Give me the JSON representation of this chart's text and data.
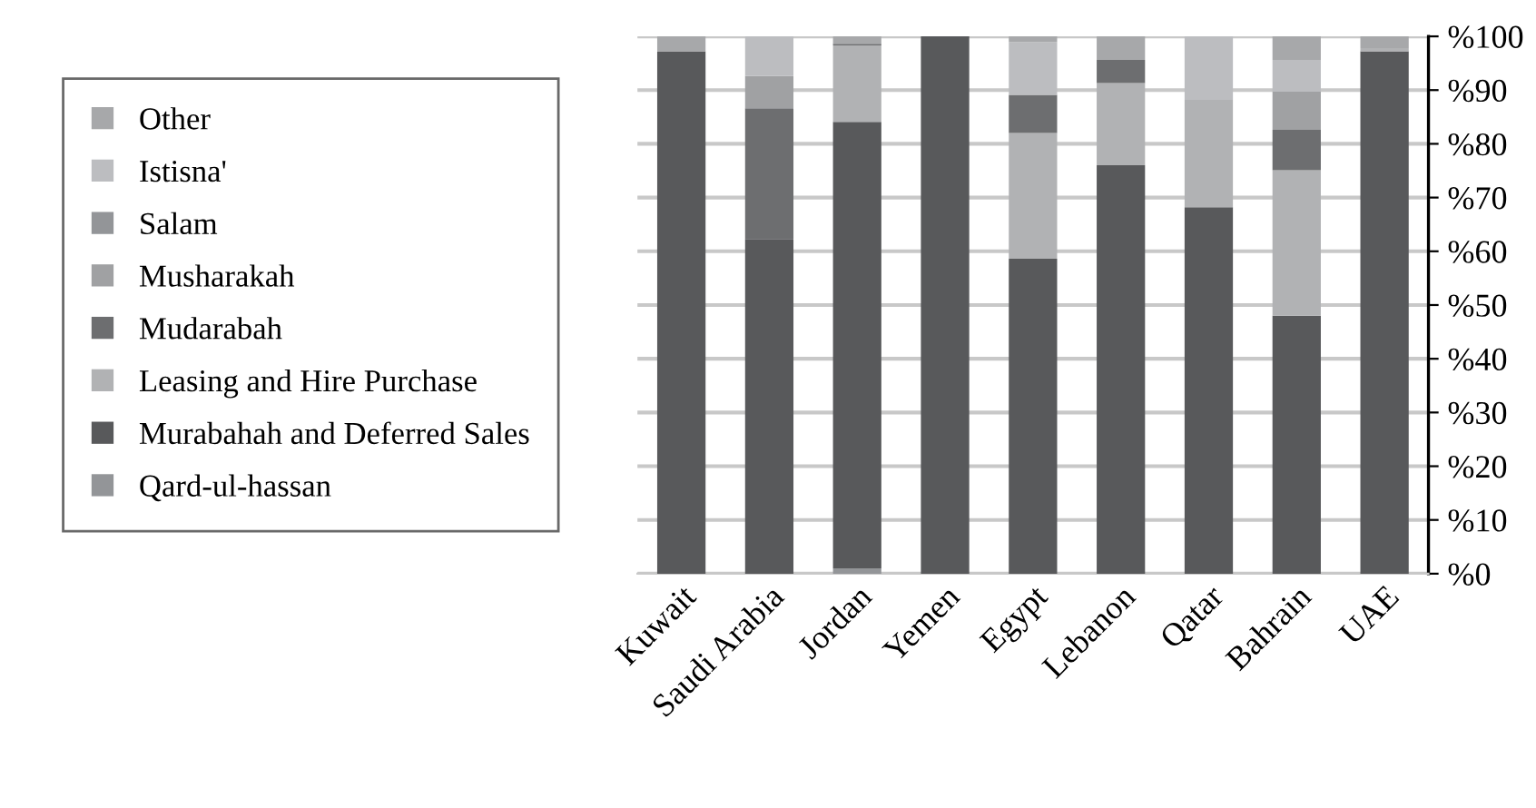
{
  "chart_data": {
    "type": "bar",
    "stacked": true,
    "categories": [
      "Kuwait",
      "Saudi Arabia",
      "Jordan",
      "Yemen",
      "Egypt",
      "Lebanon",
      "Qatar",
      "Bahrain",
      "UAE"
    ],
    "series": [
      {
        "name": "Qard-ul-hassan",
        "color": "#939598",
        "values": [
          0,
          0,
          1,
          0,
          0,
          0,
          0,
          0,
          0
        ]
      },
      {
        "name": "Murabahah and Deferred Sales",
        "color": "#58595b",
        "values": [
          97.2,
          62.3,
          83.1,
          100,
          58.6,
          76.0,
          68.2,
          48.0,
          97.2
        ]
      },
      {
        "name": "Leasing and Hire Purchase",
        "color": "#b1b2b4",
        "values": [
          0,
          0,
          14.2,
          0,
          23.4,
          15.3,
          20.0,
          27.1,
          0.6
        ]
      },
      {
        "name": "Mudarabah",
        "color": "#6d6e70",
        "values": [
          0,
          24.3,
          0.3,
          0,
          7.1,
          4.3,
          0,
          7.5,
          0
        ]
      },
      {
        "name": "Musharakah",
        "color": "#a0a1a3",
        "values": [
          0,
          6.0,
          0,
          0,
          0,
          0,
          0,
          7.1,
          0
        ]
      },
      {
        "name": "Salam",
        "color": "#939598",
        "values": [
          0,
          0,
          0,
          0,
          0,
          0,
          0,
          0,
          0
        ]
      },
      {
        "name": "Istisna'",
        "color": "#bcbdc0",
        "values": [
          0,
          7.4,
          0,
          0,
          9.8,
          0,
          11.8,
          5.9,
          0
        ]
      },
      {
        "name": "Other",
        "color": "#a7a8aa",
        "values": [
          2.8,
          0,
          1.4,
          0,
          1.1,
          4.4,
          0,
          4.4,
          2.2
        ]
      }
    ],
    "ylim": [
      0,
      100
    ],
    "yticks": [
      {
        "value": 0,
        "label": "%0"
      },
      {
        "value": 10,
        "label": "%10"
      },
      {
        "value": 20,
        "label": "%20"
      },
      {
        "value": 30,
        "label": "%30"
      },
      {
        "value": 40,
        "label": "%40"
      },
      {
        "value": 50,
        "label": "%50"
      },
      {
        "value": 60,
        "label": "%60"
      },
      {
        "value": 70,
        "label": "%70"
      },
      {
        "value": 80,
        "label": "%80"
      },
      {
        "value": 90,
        "label": "%90"
      },
      {
        "value": 100,
        "label": "%100"
      }
    ],
    "grid": "y",
    "legend": "left"
  }
}
